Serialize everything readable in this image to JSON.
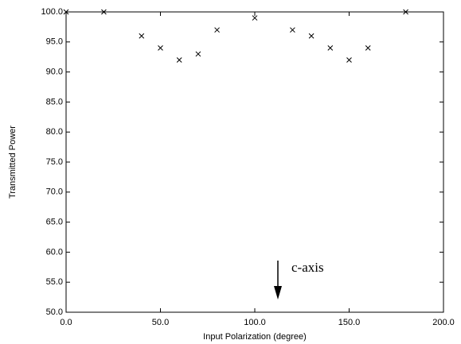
{
  "chart_data": {
    "type": "scatter",
    "xlabel": "Input Polarization (degree)",
    "ylabel": "Transmitted Power",
    "annotation": "c-axis",
    "x": [
      0,
      20,
      40,
      50,
      60,
      70,
      80,
      100,
      120,
      130,
      140,
      150,
      160,
      180
    ],
    "values": [
      100,
      100,
      96,
      94,
      92,
      93,
      97,
      99,
      97,
      96,
      94,
      92,
      94,
      100
    ],
    "color": "#000000",
    "xlim": [
      0,
      200
    ],
    "xticks": [
      {
        "value": 0,
        "label": "0.0"
      },
      {
        "value": 50,
        "label": "50.0"
      },
      {
        "value": 100,
        "label": "100.0"
      },
      {
        "value": 150,
        "label": "150.0"
      },
      {
        "value": 200,
        "label": "200.0"
      }
    ],
    "ylim": [
      50,
      100
    ],
    "yticks": [
      {
        "value": 50,
        "label": "50.0"
      },
      {
        "value": 55,
        "label": "55.0"
      },
      {
        "value": 60,
        "label": "60.0"
      },
      {
        "value": 65,
        "label": "65.0"
      },
      {
        "value": 70,
        "label": "70.0"
      },
      {
        "value": 75,
        "label": "75.0"
      },
      {
        "value": 80,
        "label": "80.0"
      },
      {
        "value": 85,
        "label": "85.0"
      },
      {
        "value": 90,
        "label": "90.0"
      },
      {
        "value": 95,
        "label": "95.0"
      },
      {
        "value": 100,
        "label": "100.0"
      }
    ],
    "grid": false
  }
}
